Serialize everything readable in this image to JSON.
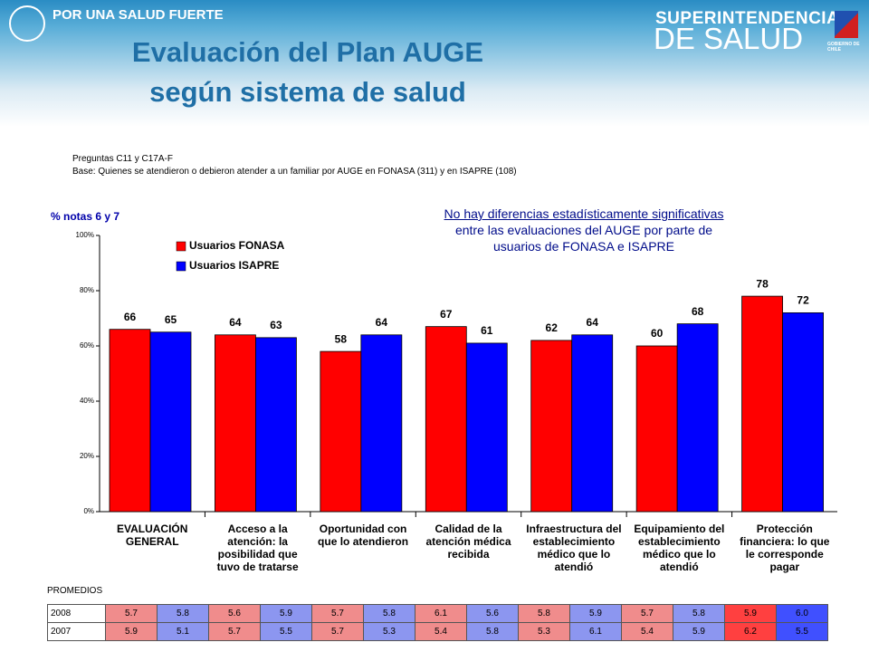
{
  "header": {
    "slogan": "POR UNA SALUD FUERTE",
    "org_line1": "SUPERINTENDENCIA",
    "org_line2": "DE SALUD",
    "gov": "GOBIERNO DE CHILE"
  },
  "title_lines": [
    "Evaluación del Plan AUGE",
    "según sistema de salud"
  ],
  "notes": [
    "Preguntas C11 y C17A-F",
    "Base: Quienes se atendieron o debieron atender a un familiar por AUGE  en FONASA (311)  y en ISAPRE (108)"
  ],
  "chart_data": {
    "type": "bar",
    "y_label": "% notas 6 y 7",
    "annotation": [
      "No hay diferencias estadísticamente significativas",
      "entre las evaluaciones del AUGE por parte de",
      "usuarios de FONASA e ISAPRE"
    ],
    "categories": [
      "EVALUACIÓN GENERAL",
      "Acceso a la atención: la posibilidad que tuvo de tratarse",
      "Oportunidad con que lo atendieron",
      "Calidad de la atención médica recibida",
      "Infraestructura del establecimiento médico que lo atendió",
      "Equipamiento del establecimiento médico que lo atendió",
      "Protección financiera: lo que le corresponde pagar"
    ],
    "series": [
      {
        "name": "Usuarios FONASA",
        "color": "#ff0000",
        "values": [
          66,
          64,
          58,
          67,
          62,
          60,
          78
        ]
      },
      {
        "name": "Usuarios ISAPRE",
        "color": "#0000ff",
        "values": [
          65,
          63,
          64,
          61,
          64,
          68,
          72
        ]
      }
    ],
    "ylim": [
      0,
      100
    ],
    "yticks": [
      {
        "value": 0,
        "label": "0%"
      },
      {
        "value": 20,
        "label": "20%"
      },
      {
        "value": 40,
        "label": "40%"
      },
      {
        "value": 60,
        "label": "60%"
      },
      {
        "value": 80,
        "label": "80%"
      },
      {
        "value": 100,
        "label": "100%"
      }
    ]
  },
  "table": {
    "title": "PROMEDIOS",
    "rows": [
      [
        "2008",
        "5.7",
        "5.8",
        "5.6",
        "5.9",
        "5.7",
        "5.8",
        "6.1",
        "5.6",
        "5.8",
        "5.9",
        "5.7",
        "5.8",
        "5.9",
        "6.0"
      ],
      [
        "2007",
        "5.9",
        "5.1",
        "5.7",
        "5.5",
        "5.7",
        "5.3",
        "5.4",
        "5.8",
        "5.3",
        "6.1",
        "5.4",
        "5.9",
        "6.2",
        "5.5"
      ]
    ]
  }
}
